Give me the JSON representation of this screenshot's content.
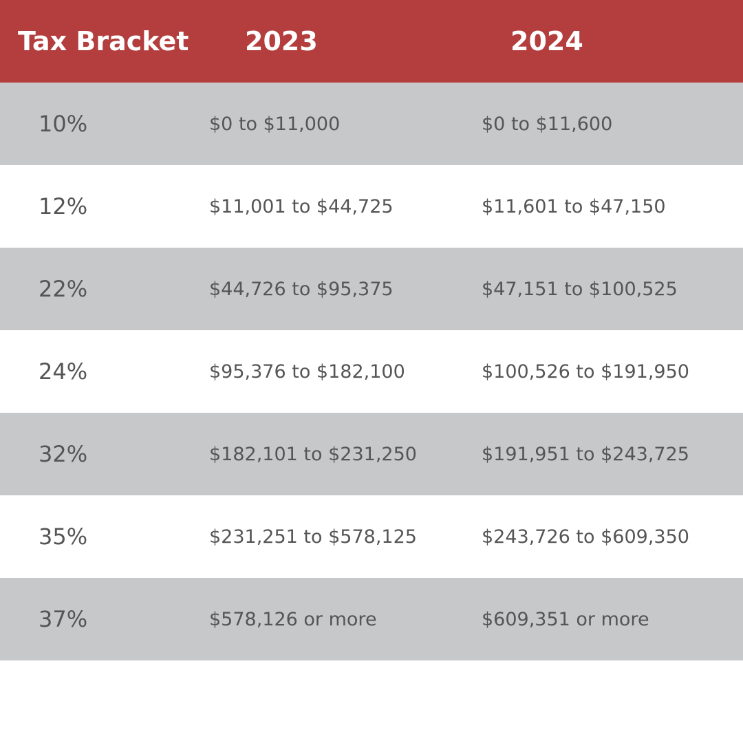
{
  "table": {
    "header": [
      "Tax Bracket",
      "2023",
      "2024"
    ],
    "rows": [
      [
        "10%",
        "$0 to $11,000",
        "$0 to $11,600"
      ],
      [
        "12%",
        "$11,001 to $44,725",
        "$11,601 to $47,150"
      ],
      [
        "22%",
        "$44,726 to $95,375",
        "$47,151 to $100,525"
      ],
      [
        "24%",
        "$95,376 to $182,100",
        "$100,526 to $191,950"
      ],
      [
        "32%",
        "$182,101 to $231,250",
        "$191,951 to $243,725"
      ],
      [
        "35%",
        "$231,251 to $578,125",
        "$243,726 to $609,350"
      ],
      [
        "37%",
        "$578,126 or more",
        "$609,351 or more"
      ]
    ]
  }
}
